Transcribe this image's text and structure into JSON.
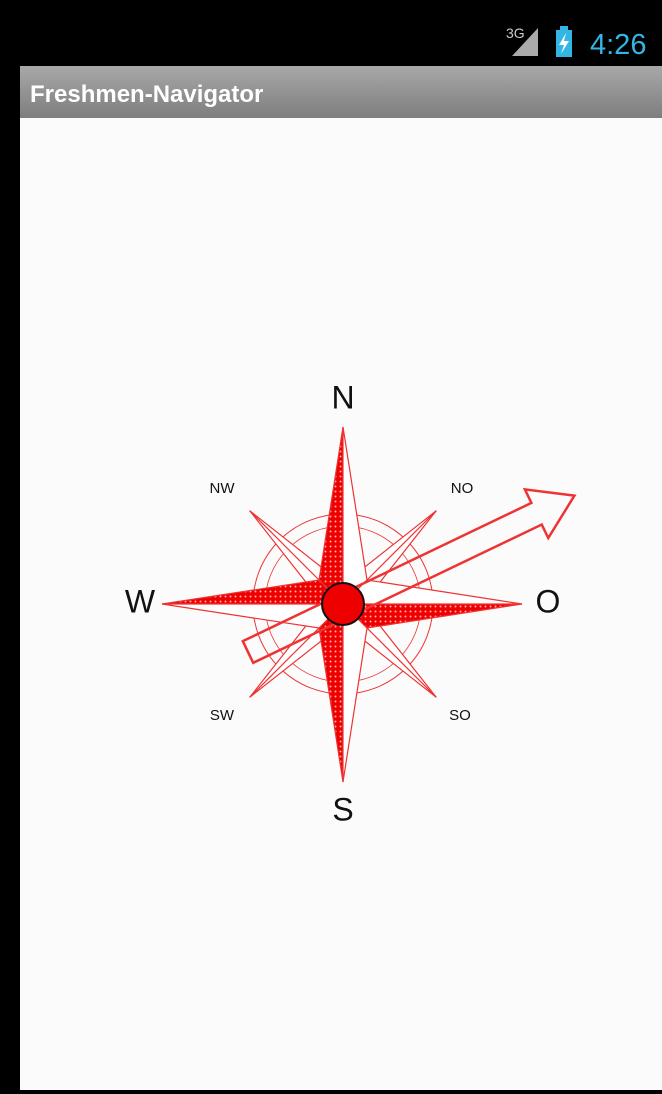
{
  "status_bar": {
    "network": "3G",
    "time": "4:26"
  },
  "app_bar": {
    "title": "Freshmen-Navigator"
  },
  "compass": {
    "labels": {
      "n": "N",
      "s": "S",
      "w": "W",
      "o": "O",
      "nw": "NW",
      "no": "NO",
      "sw": "SW",
      "so": "SO"
    }
  }
}
